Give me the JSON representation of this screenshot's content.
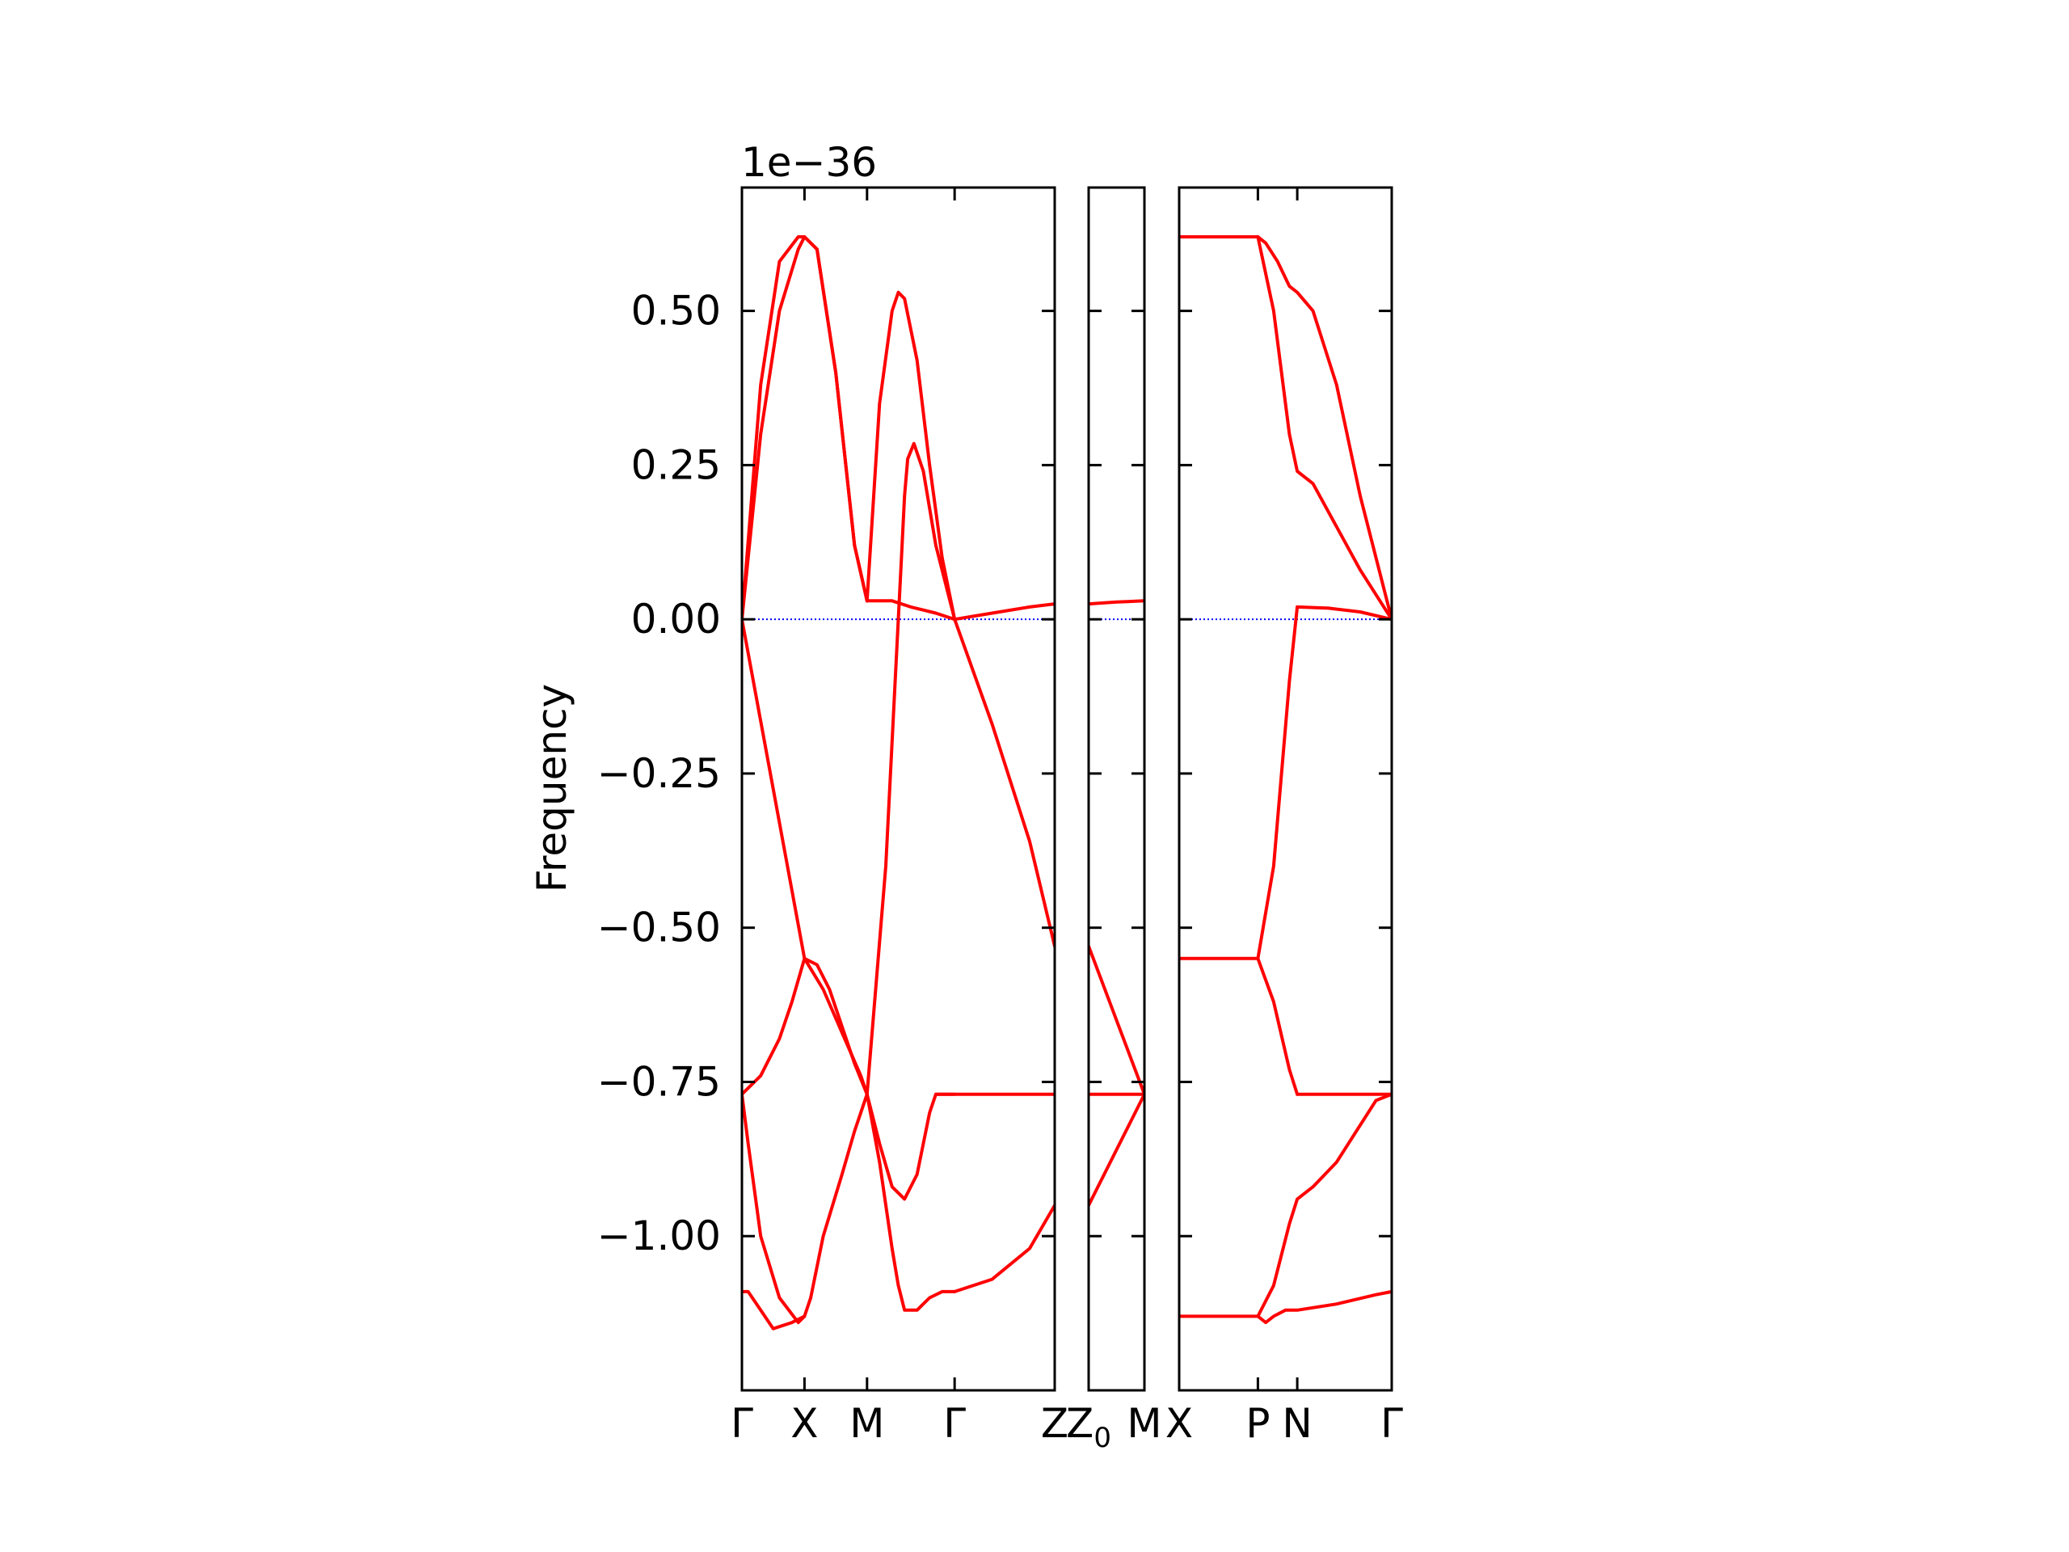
{
  "chart_data": {
    "type": "line",
    "ylabel": "Frequency",
    "offset_label": "1e−36",
    "ylim": [
      -1.25,
      0.7
    ],
    "yticks": [
      {
        "value": 0.5,
        "label": "0.50"
      },
      {
        "value": 0.25,
        "label": "0.25"
      },
      {
        "value": 0.0,
        "label": "0.00"
      },
      {
        "value": -0.25,
        "label": "−0.25"
      },
      {
        "value": -0.5,
        "label": "−0.50"
      },
      {
        "value": -0.75,
        "label": "−0.75"
      },
      {
        "value": -1.0,
        "label": "−1.00"
      }
    ],
    "grid": false,
    "zero_line_color": "#0000ff",
    "band_color": "#ff0000",
    "panels": [
      {
        "name": "panel-1",
        "xlim": [
          0,
          5
        ],
        "xticks": [
          {
            "value": 0,
            "label": "Γ"
          },
          {
            "value": 1,
            "label": "X"
          },
          {
            "value": 2,
            "label": "M"
          },
          {
            "value": 3.4,
            "label": "Γ"
          },
          {
            "value": 5,
            "label": "Z"
          }
        ],
        "series": [
          {
            "x": [
              0,
              0.3,
              0.6,
              0.9,
              1,
              1.2,
              1.5,
              1.8,
              2
            ],
            "y": [
              0,
              0.38,
              0.58,
              0.62,
              0.62,
              0.6,
              0.4,
              0.12,
              0.03
            ]
          },
          {
            "x": [
              0,
              0.3,
              0.6,
              0.9,
              1,
              1.2,
              1.5,
              1.8,
              2
            ],
            "y": [
              0,
              0.3,
              0.5,
              0.6,
              0.62,
              0.6,
              0.4,
              0.12,
              0.03
            ]
          },
          {
            "x": [
              2,
              2.2,
              2.4,
              2.5,
              2.6,
              2.8,
              3.0,
              3.2,
              3.4
            ],
            "y": [
              0.03,
              0.35,
              0.5,
              0.53,
              0.52,
              0.42,
              0.25,
              0.1,
              0
            ]
          },
          {
            "x": [
              3.4,
              4,
              4.6,
              5
            ],
            "y": [
              0,
              0.01,
              0.02,
              0.025
            ]
          },
          {
            "x": [
              2,
              2.4,
              2.7,
              2.9,
              3.1,
              3.4
            ],
            "y": [
              0.03,
              0.03,
              0.02,
              0.015,
              0.01,
              0
            ]
          },
          {
            "x": [
              2,
              2.3,
              2.45,
              2.55,
              2.6,
              2.65,
              2.75,
              2.9,
              3.1,
              3.4
            ],
            "y": [
              -0.77,
              -0.4,
              -0.1,
              0.1,
              0.2,
              0.26,
              0.285,
              0.24,
              0.12,
              0
            ]
          },
          {
            "x": [
              3.4,
              4,
              4.6,
              5
            ],
            "y": [
              0,
              -0.17,
              -0.36,
              -0.53
            ]
          },
          {
            "x": [
              0,
              1
            ],
            "y": [
              0,
              -0.55
            ]
          },
          {
            "x": [
              1,
              1.2,
              1.4,
              1.6,
              1.8,
              2
            ],
            "y": [
              -0.55,
              -0.56,
              -0.6,
              -0.66,
              -0.72,
              -0.77
            ]
          },
          {
            "x": [
              0,
              0.3,
              0.6,
              0.8,
              1
            ],
            "y": [
              -0.77,
              -0.74,
              -0.68,
              -0.62,
              -0.55
            ]
          },
          {
            "x": [
              0,
              0.1,
              0.3,
              0.6,
              0.9,
              1,
              1.1
            ],
            "y": [
              -0.77,
              -0.85,
              -1.0,
              -1.1,
              -1.14,
              -1.13,
              -1.1
            ]
          },
          {
            "x": [
              1.1,
              1.3,
              1.6,
              1.8,
              2
            ],
            "y": [
              -1.1,
              -1.0,
              -0.9,
              -0.83,
              -0.77
            ]
          },
          {
            "x": [
              0,
              0.1,
              0.3,
              0.5,
              0.8,
              1
            ],
            "y": [
              -1.09,
              -1.09,
              -1.12,
              -1.15,
              -1.14,
              -1.13
            ]
          },
          {
            "x": [
              1,
              1.3,
              1.6,
              1.9,
              2
            ],
            "y": [
              -0.55,
              -0.6,
              -0.67,
              -0.74,
              -0.77
            ]
          },
          {
            "x": [
              2,
              2.2,
              2.4,
              2.5,
              2.6,
              2.8,
              3,
              3.2,
              3.4
            ],
            "y": [
              -0.77,
              -0.88,
              -1.02,
              -1.08,
              -1.12,
              -1.12,
              -1.1,
              -1.09,
              -1.09
            ]
          },
          {
            "x": [
              3.4,
              4,
              4.6,
              5
            ],
            "y": [
              -1.09,
              -1.07,
              -1.02,
              -0.95
            ]
          },
          {
            "x": [
              2,
              2.2,
              2.4,
              2.6,
              2.8,
              3.0,
              3.1,
              3.4
            ],
            "y": [
              -0.77,
              -0.85,
              -0.92,
              -0.94,
              -0.9,
              -0.8,
              -0.77,
              -0.77
            ]
          },
          {
            "x": [
              3.1,
              4,
              5
            ],
            "y": [
              -0.77,
              -0.77,
              -0.77
            ]
          }
        ]
      },
      {
        "name": "panel-2",
        "xlim": [
          0,
          1
        ],
        "xticks": [
          {
            "value": 0,
            "label": "Z"
          },
          {
            "value": 1,
            "label": "M"
          }
        ],
        "xtick_subscripts": [
          {
            "index": 0,
            "sub": "0"
          }
        ],
        "series": [
          {
            "x": [
              0,
              0.5,
              1
            ],
            "y": [
              0.025,
              0.028,
              0.03
            ]
          },
          {
            "x": [
              0,
              0.5,
              1
            ],
            "y": [
              -0.53,
              -0.65,
              -0.77
            ]
          },
          {
            "x": [
              0,
              0.5,
              1
            ],
            "y": [
              -0.95,
              -0.86,
              -0.77
            ]
          },
          {
            "x": [
              0,
              1
            ],
            "y": [
              -0.77,
              -0.77
            ]
          }
        ]
      },
      {
        "name": "panel-3",
        "xlim": [
          0,
          2.7
        ],
        "xticks": [
          {
            "value": 0,
            "label": "X"
          },
          {
            "value": 1,
            "label": "P"
          },
          {
            "value": 1.5,
            "label": "N"
          },
          {
            "value": 2.7,
            "label": "Γ"
          }
        ],
        "series": [
          {
            "x": [
              0,
              1,
              1.1,
              1.25,
              1.4,
              1.5,
              1.7,
              2,
              2.3,
              2.7
            ],
            "y": [
              0.62,
              0.62,
              0.61,
              0.58,
              0.54,
              0.53,
              0.5,
              0.38,
              0.2,
              0
            ]
          },
          {
            "x": [
              1,
              1.2,
              1.4,
              1.5,
              1.7,
              2,
              2.3,
              2.7
            ],
            "y": [
              0.62,
              0.5,
              0.3,
              0.24,
              0.22,
              0.15,
              0.08,
              0
            ]
          },
          {
            "x": [
              1.5,
              1.9,
              2.3,
              2.7
            ],
            "y": [
              0.02,
              0.018,
              0.012,
              0
            ]
          },
          {
            "x": [
              1,
              1.2,
              1.4,
              1.5
            ],
            "y": [
              -0.55,
              -0.4,
              -0.1,
              0.02
            ]
          },
          {
            "x": [
              0,
              1
            ],
            "y": [
              -0.55,
              -0.55
            ]
          },
          {
            "x": [
              1,
              1.2,
              1.4,
              1.5
            ],
            "y": [
              -0.55,
              -0.62,
              -0.73,
              -0.77
            ]
          },
          {
            "x": [
              1.5,
              2.7
            ],
            "y": [
              -0.77,
              -0.77
            ]
          },
          {
            "x": [
              1,
              1.2,
              1.4,
              1.5,
              1.7,
              2,
              2.3,
              2.5,
              2.7
            ],
            "y": [
              -1.13,
              -1.08,
              -0.98,
              -0.94,
              -0.92,
              -0.88,
              -0.82,
              -0.78,
              -0.77
            ]
          },
          {
            "x": [
              0,
              1,
              1.1,
              1.2,
              1.35,
              1.5,
              2,
              2.5,
              2.7
            ],
            "y": [
              -1.13,
              -1.13,
              -1.14,
              -1.13,
              -1.12,
              -1.12,
              -1.11,
              -1.095,
              -1.09
            ]
          }
        ]
      }
    ]
  }
}
